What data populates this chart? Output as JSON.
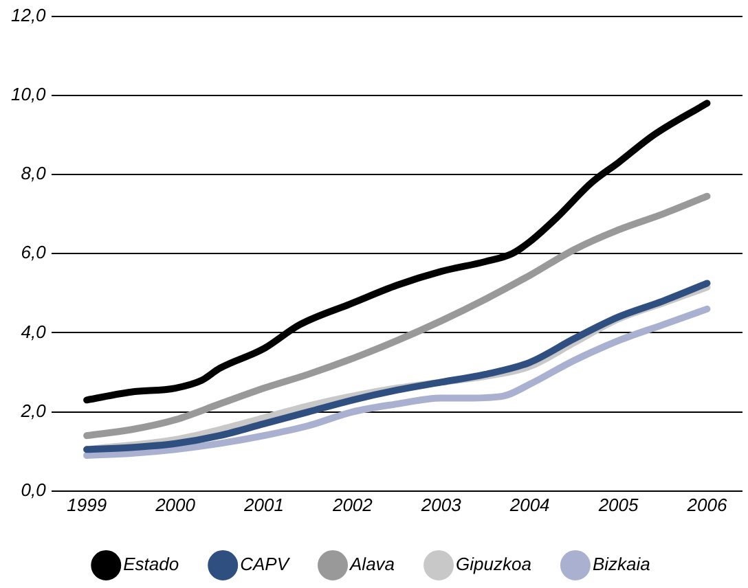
{
  "chart_data": {
    "type": "line",
    "xlim": [
      1998.6,
      2006.4
    ],
    "xticks": [
      1999,
      2000,
      2001,
      2002,
      2003,
      2004,
      2005,
      2006
    ],
    "ylim": [
      0,
      12
    ],
    "yticks": [
      {
        "value": 0,
        "label": "0,0"
      },
      {
        "value": 2,
        "label": "2,0"
      },
      {
        "value": 4,
        "label": "4,0"
      },
      {
        "value": 6,
        "label": "6,0"
      },
      {
        "value": 8,
        "label": "8,0"
      },
      {
        "value": 10,
        "label": "10,0"
      },
      {
        "value": 12,
        "label": "12,0"
      }
    ],
    "grid": "y",
    "legend": "bottom",
    "marker": "none",
    "line_style": "solid",
    "series": [
      {
        "name": "Estado",
        "color": "#000000",
        "x": [
          1999,
          1999.5,
          2000,
          2000.3,
          2000.5,
          2001,
          2001.4,
          2002,
          2002.5,
          2003,
          2003.5,
          2003.8,
          2004,
          2004.3,
          2004.7,
          2005,
          2005.4,
          2006
        ],
        "values": [
          2.3,
          2.5,
          2.6,
          2.8,
          3.1,
          3.6,
          4.2,
          4.75,
          5.2,
          5.55,
          5.8,
          6.0,
          6.3,
          6.9,
          7.8,
          8.3,
          9.0,
          9.8
        ]
      },
      {
        "name": "CAPV",
        "color": "#2e4f80",
        "x": [
          1999,
          1999.5,
          2000,
          2000.5,
          2001,
          2001.5,
          2002,
          2002.5,
          2003,
          2003.5,
          2004,
          2004.5,
          2005,
          2005.5,
          2006
        ],
        "values": [
          1.05,
          1.1,
          1.2,
          1.4,
          1.7,
          2.0,
          2.3,
          2.55,
          2.75,
          2.95,
          3.25,
          3.85,
          4.4,
          4.8,
          5.25
        ]
      },
      {
        "name": "Alava",
        "color": "#999999",
        "x": [
          1999,
          1999.5,
          2000,
          2000.5,
          2001,
          2001.5,
          2002,
          2002.5,
          2003,
          2003.5,
          2004,
          2004.5,
          2005,
          2005.5,
          2006
        ],
        "values": [
          1.4,
          1.55,
          1.8,
          2.2,
          2.6,
          2.95,
          3.35,
          3.8,
          4.3,
          4.85,
          5.45,
          6.1,
          6.6,
          7.0,
          7.45
        ]
      },
      {
        "name": "Gipuzkoa",
        "color": "#c8c8c8",
        "x": [
          1999,
          2000,
          2000.5,
          2001,
          2001.5,
          2002,
          2002.5,
          2003,
          2003.5,
          2004,
          2004.5,
          2005,
          2005.5,
          2006
        ],
        "values": [
          1.05,
          1.3,
          1.55,
          1.85,
          2.15,
          2.4,
          2.6,
          2.75,
          2.9,
          3.15,
          3.75,
          4.35,
          4.75,
          5.15
        ]
      },
      {
        "name": "Bizkaia",
        "color": "#a9b0d0",
        "x": [
          1999,
          1999.5,
          2000,
          2000.5,
          2001,
          2001.5,
          2002,
          2002.5,
          2003,
          2003.3,
          2003.7,
          2004,
          2004.5,
          2005,
          2005.5,
          2006
        ],
        "values": [
          0.9,
          0.95,
          1.05,
          1.2,
          1.4,
          1.65,
          2.0,
          2.2,
          2.35,
          2.35,
          2.4,
          2.7,
          3.3,
          3.8,
          4.2,
          4.6
        ]
      }
    ]
  }
}
